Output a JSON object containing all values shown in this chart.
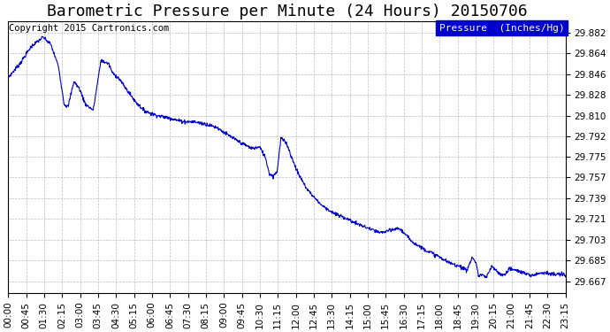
{
  "title": "Barometric Pressure per Minute (24 Hours) 20150706",
  "copyright": "Copyright 2015 Cartronics.com",
  "legend_label": "Pressure  (Inches/Hg)",
  "legend_bg": "#0000cc",
  "legend_fg": "#ffffff",
  "line_color": "#0000cc",
  "bg_color": "#ffffff",
  "grid_color": "#aaaaaa",
  "yticks": [
    29.667,
    29.685,
    29.703,
    29.721,
    29.739,
    29.757,
    29.775,
    29.792,
    29.81,
    29.828,
    29.846,
    29.864,
    29.882
  ],
  "ylim": [
    29.657,
    29.892
  ],
  "xtick_labels": [
    "00:00",
    "00:45",
    "01:30",
    "02:15",
    "03:00",
    "03:45",
    "04:30",
    "05:15",
    "06:00",
    "06:45",
    "07:30",
    "08:15",
    "09:00",
    "09:45",
    "10:30",
    "11:15",
    "12:00",
    "12:45",
    "13:30",
    "14:15",
    "15:00",
    "15:45",
    "16:30",
    "17:15",
    "18:00",
    "18:45",
    "19:30",
    "20:15",
    "21:00",
    "21:45",
    "22:30",
    "23:15"
  ],
  "title_fontsize": 13,
  "tick_fontsize": 7.5,
  "copyright_fontsize": 7.5
}
